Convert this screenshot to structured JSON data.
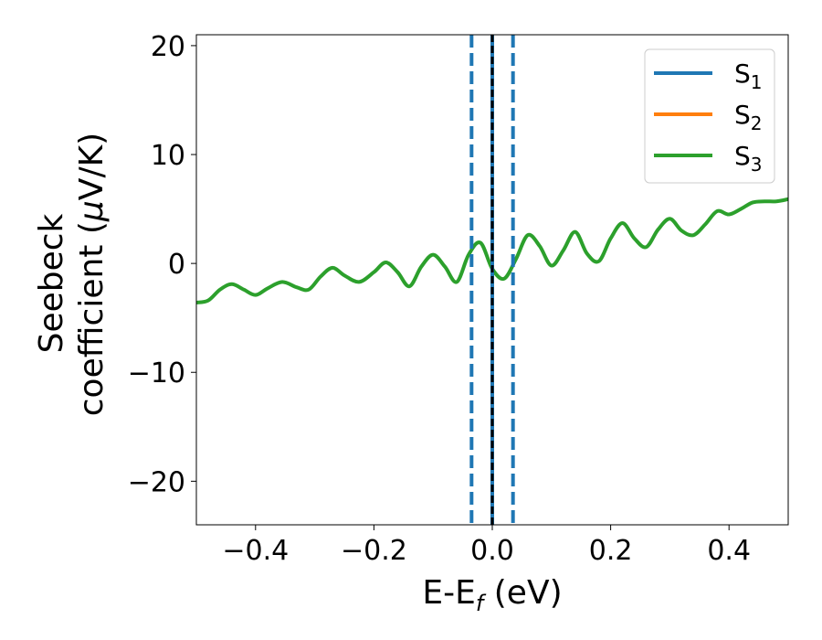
{
  "chart_data": {
    "type": "line",
    "xlabel": {
      "base": "E-E",
      "sub": "f",
      "tail": " (eV)"
    },
    "ylabel": {
      "line1": "Seebeck",
      "line2": "coefficient  (",
      "mu": "μ",
      "tail": "V/K)"
    },
    "xlim": [
      -0.5,
      0.5
    ],
    "ylim": [
      -24,
      21
    ],
    "xticks": [
      -0.4,
      -0.2,
      0.0,
      0.2,
      0.4
    ],
    "xtick_labels": [
      "−0.4",
      "−0.2",
      "0.0",
      "0.2",
      "0.4"
    ],
    "yticks": [
      -20,
      -10,
      0,
      10,
      20
    ],
    "ytick_labels": [
      "−20",
      "−10",
      "0",
      "10",
      "20"
    ],
    "grid": false,
    "legend_position": "top-right",
    "series": [
      {
        "name": "S",
        "sub": "1",
        "color": "#1f77b4",
        "x": [],
        "y": []
      },
      {
        "name": "S",
        "sub": "2",
        "color": "#ff7f0e",
        "x": [],
        "y": []
      },
      {
        "name": "S",
        "sub": "3",
        "color": "#2ca02c",
        "x": [
          -0.5,
          -0.48,
          -0.46,
          -0.44,
          -0.42,
          -0.4,
          -0.38,
          -0.355,
          -0.33,
          -0.31,
          -0.29,
          -0.27,
          -0.25,
          -0.225,
          -0.2,
          -0.18,
          -0.16,
          -0.14,
          -0.12,
          -0.1,
          -0.08,
          -0.06,
          -0.04,
          -0.02,
          0.0,
          0.02,
          0.04,
          0.06,
          0.08,
          0.1,
          0.12,
          0.14,
          0.16,
          0.18,
          0.2,
          0.22,
          0.24,
          0.26,
          0.28,
          0.3,
          0.32,
          0.34,
          0.36,
          0.38,
          0.4,
          0.42,
          0.44,
          0.46,
          0.48,
          0.5
        ],
        "y": [
          -3.6,
          -3.4,
          -2.4,
          -1.9,
          -2.4,
          -2.9,
          -2.3,
          -1.7,
          -2.2,
          -2.4,
          -1.2,
          -0.4,
          -1.1,
          -1.7,
          -0.8,
          0.1,
          -0.8,
          -2.1,
          -0.3,
          0.8,
          -0.3,
          -1.7,
          0.8,
          1.9,
          -0.5,
          -1.4,
          0.4,
          2.6,
          1.6,
          -0.2,
          1.2,
          2.9,
          0.9,
          0.2,
          2.3,
          3.7,
          2.3,
          1.5,
          3.1,
          4.1,
          3.0,
          2.6,
          3.6,
          4.8,
          4.5,
          5.0,
          5.6,
          5.7,
          5.7,
          5.9
        ]
      }
    ],
    "vlines": [
      {
        "x": -0.035,
        "color": "#1f77b4",
        "style": "dashed"
      },
      {
        "x": 0.0,
        "color": "#1f77b4",
        "style": "solid"
      },
      {
        "x": 0.0,
        "color": "#000000",
        "style": "dashed"
      },
      {
        "x": 0.035,
        "color": "#1f77b4",
        "style": "dashed"
      }
    ]
  }
}
